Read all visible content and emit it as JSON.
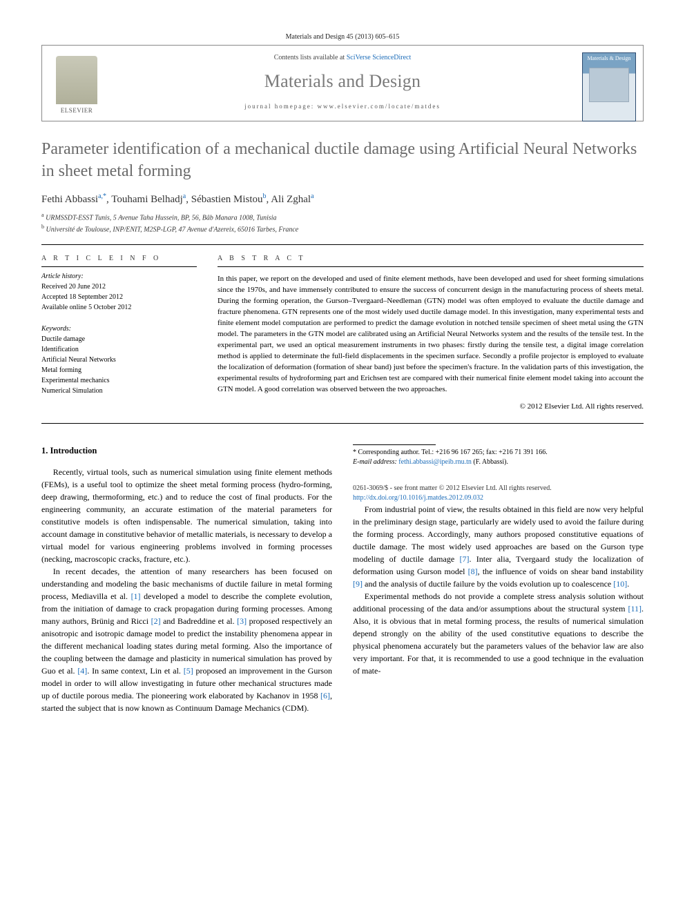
{
  "header": {
    "citation_line": "Materials and Design 45 (2013) 605–615",
    "contents_prefix": "Contents lists available at ",
    "contents_link": "SciVerse ScienceDirect",
    "journal_name": "Materials and Design",
    "homepage_line": "journal homepage: www.elsevier.com/locate/matdes",
    "publisher_logo_text": "ELSEVIER",
    "cover_title": "Materials & Design"
  },
  "article": {
    "title": "Parameter identification of a mechanical ductile damage using Artificial Neural Networks in sheet metal forming",
    "authors_html": {
      "a1": "Fethi Abbassi",
      "a1_sup": "a,*",
      "a2": "Touhami Belhadj",
      "a2_sup": "a",
      "a3": "Sébastien Mistou",
      "a3_sup": "b",
      "a4": "Ali Zghal",
      "a4_sup": "a"
    },
    "affiliations": {
      "a": "URMSSDT-ESST Tunis, 5 Avenue Taha Hussein, BP, 56, Bâb Manara 1008, Tunisia",
      "b": "Université de Toulouse, INP/ENIT, M2SP-LGP, 47 Avenue d'Azereix, 65016 Tarbes, France"
    }
  },
  "info": {
    "head": "A R T I C L E   I N F O",
    "history_label": "Article history:",
    "history": [
      "Received 20 June 2012",
      "Accepted 18 September 2012",
      "Available online 5 October 2012"
    ],
    "keywords_label": "Keywords:",
    "keywords": [
      "Ductile damage",
      "Identification",
      "Artificial Neural Networks",
      "Metal forming",
      "Experimental mechanics",
      "Numerical Simulation"
    ]
  },
  "abstract": {
    "head": "A B S T R A C T",
    "body": "In this paper, we report on the developed and used of finite element methods, have been developed and used for sheet forming simulations since the 1970s, and have immensely contributed to ensure the success of concurrent design in the manufacturing process of sheets metal. During the forming operation, the Gurson–Tvergaard–Needleman (GTN) model was often employed to evaluate the ductile damage and fracture phenomena. GTN represents one of the most widely used ductile damage model. In this investigation, many experimental tests and finite element model computation are performed to predict the damage evolution in notched tensile specimen of sheet metal using the GTN model. The parameters in the GTN model are calibrated using an Artificial Neural Networks system and the results of the tensile test. In the experimental part, we used an optical measurement instruments in two phases: firstly during the tensile test, a digital image correlation method is applied to determinate the full-field displacements in the specimen surface. Secondly a profile projector is employed to evaluate the localization of deformation (formation of shear band) just before the specimen's fracture. In the validation parts of this investigation, the experimental results of hydroforming part and Erichsen test are compared with their numerical finite element model taking into account the GTN model. A good correlation was observed between the two approaches.",
    "copyright": "© 2012 Elsevier Ltd. All rights reserved."
  },
  "body": {
    "section_number": "1.",
    "section_title": "Introduction",
    "p1": "Recently, virtual tools, such as numerical simulation using finite element methods (FEMs), is a useful tool to optimize the sheet metal forming process (hydro-forming, deep drawing, thermoforming, etc.) and to reduce the cost of final products. For the engineering community, an accurate estimation of the material parameters for constitutive models is often indispensable. The numerical simulation, taking into account damage in constitutive behavior of metallic materials, is necessary to develop a virtual model for various engineering problems involved in forming processes (necking, macroscopic cracks, fracture, etc.).",
    "p2a": "In recent decades, the attention of many researchers has been focused on understanding and modeling the basic mechanisms of ductile failure in metal forming process, Mediavilla et al. ",
    "r1": "[1]",
    "p2b": " developed a model to describe the complete evolution, from the initiation of damage to crack propagation during forming processes. Among many authors, Brünig and Ricci ",
    "r2": "[2]",
    "p2c": " and Badreddine et al. ",
    "r3": "[3]",
    "p2d": " proposed respectively an anisotropic and isotropic damage model to predict the instability phenomena appear in the different mechanical loading states during metal forming. Also the importance of the coupling between the damage and plasticity in numerical simulation has proved by Guo et al. ",
    "r4": "[4]",
    "p2e": ". In same context, Lin et al. ",
    "r5": "[5]",
    "p2f": " proposed an improvement in the Gurson model in order to will allow investigating in future other mechanical structures made up of ductile porous media. The pioneering work elaborated by Kachanov in 1958 ",
    "r6": "[6]",
    "p2g": ", started the subject that is now known as Continuum Damage Mechanics (CDM).",
    "p3a": "From industrial point of view, the results obtained in this field are now very helpful in the preliminary design stage, particularly are widely used to avoid the failure during the forming process. Accordingly, many authors proposed constitutive equations of ductile damage. The most widely used approaches are based on the Gurson type modeling of ductile damage ",
    "r7": "[7]",
    "p3b": ". Inter alia, Tvergaard study the localization of deformation using Gurson model ",
    "r8": "[8]",
    "p3c": ", the influence of voids on shear band instability ",
    "r9": "[9]",
    "p3d": " and the analysis of ductile failure by the voids evolution up to coalescence ",
    "r10": "[10]",
    "p3e": ".",
    "p4a": "Experimental methods do not provide a complete stress analysis solution without additional processing of the data and/or assumptions about the structural system ",
    "r11": "[11]",
    "p4b": ". Also, it is obvious that in metal forming process, the results of numerical simulation depend strongly on the ability of the used constitutive equations to describe the physical phenomena accurately but the parameters values of the behavior law are also very important. For that, it is recommended to use a good technique in the evaluation of mate-"
  },
  "footnotes": {
    "corr": "* Corresponding author. Tel.: +216 96 167 265; fax: +216 71 391 166.",
    "email_label": "E-mail address:",
    "email": "fethi.abbassi@ipeib.rnu.tn",
    "email_who": "(F. Abbassi)."
  },
  "footer": {
    "line1": "0261-3069/$ - see front matter © 2012 Elsevier Ltd. All rights reserved.",
    "doi": "http://dx.doi.org/10.1016/j.matdes.2012.09.032"
  },
  "colors": {
    "link": "#1a6bb8",
    "title_gray": "#6a6a6a",
    "text": "#000000"
  }
}
